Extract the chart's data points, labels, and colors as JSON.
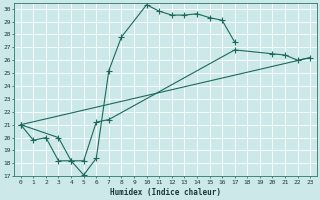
{
  "xlabel": "Humidex (Indice chaleur)",
  "background_color": "#cce8e8",
  "grid_color": "#ffffff",
  "line_color": "#1a6b5a",
  "xlim": [
    -0.5,
    23.5
  ],
  "ylim": [
    17,
    30.4
  ],
  "xticks": [
    0,
    1,
    2,
    3,
    4,
    5,
    6,
    7,
    8,
    9,
    10,
    11,
    12,
    13,
    14,
    15,
    16,
    17,
    18,
    19,
    20,
    21,
    22,
    23
  ],
  "yticks": [
    17,
    18,
    19,
    20,
    21,
    22,
    23,
    24,
    25,
    26,
    27,
    28,
    29,
    30
  ],
  "line1_x": [
    0,
    1,
    2,
    3,
    4,
    5,
    6,
    7,
    8,
    10,
    11,
    12,
    13,
    14,
    15,
    16,
    17
  ],
  "line1_y": [
    21,
    19.8,
    20,
    18.2,
    18.2,
    17.1,
    18.4,
    25.2,
    27.8,
    30.3,
    29.8,
    29.5,
    29.5,
    29.6,
    29.3,
    29.1,
    27.4
  ],
  "line2_x": [
    0,
    3,
    4,
    5,
    6,
    7,
    17,
    20,
    21,
    22,
    23
  ],
  "line2_y": [
    21,
    20,
    18.2,
    18.2,
    21.2,
    21.4,
    26.8,
    26.5,
    26.4,
    26.0,
    26.2
  ],
  "line3_x": [
    0,
    23
  ],
  "line3_y": [
    21,
    26.2
  ]
}
